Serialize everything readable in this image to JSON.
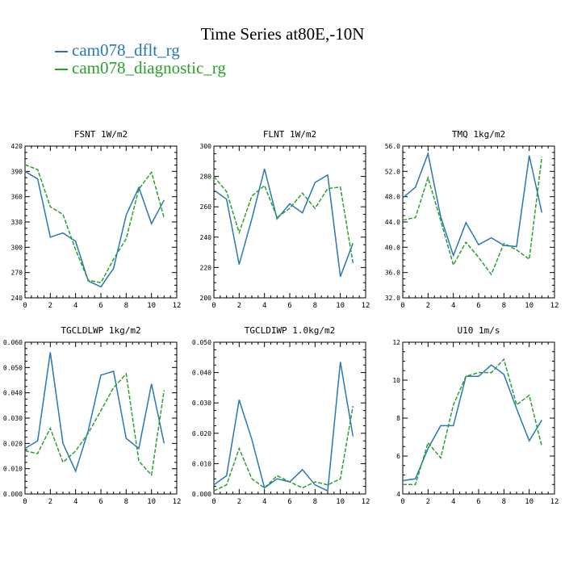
{
  "figure": {
    "title": "Time Series at80E,-10N",
    "legend": [
      {
        "label": "cam078_dflt_rg",
        "color": "#2878b4",
        "dash": "solid"
      },
      {
        "label": "cam078_diagnostic_rg",
        "color": "#2ca02c",
        "dash": "dashed"
      }
    ]
  },
  "chart_data": [
    {
      "type": "line",
      "title": "FSNT",
      "units": "1W/m2",
      "x": [
        0,
        1,
        2,
        3,
        4,
        5,
        6,
        7,
        8,
        9,
        10,
        11
      ],
      "xlim": [
        0,
        12
      ],
      "xticks": [
        0,
        2,
        4,
        6,
        8,
        10,
        12
      ],
      "ylim": [
        240,
        420
      ],
      "yticks": [
        "240",
        "270",
        "300",
        "330",
        "360",
        "390",
        "420"
      ],
      "series": [
        {
          "name": "cam078_dflt_rg",
          "values": [
            390,
            381,
            312,
            317,
            307,
            260,
            253,
            275,
            338,
            371,
            328,
            356
          ]
        },
        {
          "name": "cam078_diagnostic_rg",
          "values": [
            398,
            392,
            348,
            339,
            297,
            261,
            258,
            286,
            310,
            369,
            389,
            335
          ]
        }
      ]
    },
    {
      "type": "line",
      "title": "FLNT",
      "units": "1W/m2",
      "x": [
        0,
        1,
        2,
        3,
        4,
        5,
        6,
        7,
        8,
        9,
        10,
        11
      ],
      "xlim": [
        0,
        12
      ],
      "xticks": [
        0,
        2,
        4,
        6,
        8,
        10,
        12
      ],
      "ylim": [
        200,
        300
      ],
      "yticks": [
        "200",
        "220",
        "240",
        "260",
        "280",
        "300"
      ],
      "series": [
        {
          "name": "cam078_dflt_rg",
          "values": [
            271,
            265,
            222,
            252,
            285,
            252,
            262,
            256,
            276,
            281,
            214,
            236
          ]
        },
        {
          "name": "cam078_diagnostic_rg",
          "values": [
            280,
            270,
            243,
            267,
            274,
            253,
            259,
            269,
            259,
            272,
            273,
            223
          ]
        }
      ]
    },
    {
      "type": "line",
      "title": "TMQ",
      "units": "1kg/m2",
      "x": [
        0,
        1,
        2,
        3,
        4,
        5,
        6,
        7,
        8,
        9,
        10,
        11
      ],
      "xlim": [
        0,
        12
      ],
      "xticks": [
        0,
        2,
        4,
        6,
        8,
        10,
        12
      ],
      "ylim": [
        32,
        56
      ],
      "yticks": [
        "32.0",
        "36.0",
        "40.0",
        "44.0",
        "48.0",
        "52.0",
        "56.0"
      ],
      "series": [
        {
          "name": "cam078_dflt_rg",
          "values": [
            47.8,
            49.5,
            54.8,
            44.8,
            38.7,
            43.9,
            40.4,
            41.5,
            40.3,
            40.1,
            54.5,
            45.5
          ]
        },
        {
          "name": "cam078_diagnostic_rg",
          "values": [
            44.3,
            44.7,
            51.0,
            44.2,
            37.2,
            40.8,
            38.4,
            35.7,
            40.6,
            39.6,
            38.1,
            54.3
          ]
        }
      ]
    },
    {
      "type": "line",
      "title": "TGCLDLWP",
      "units": "1kg/m2",
      "x": [
        0,
        1,
        2,
        3,
        4,
        5,
        6,
        7,
        8,
        9,
        10,
        11
      ],
      "xlim": [
        0,
        12
      ],
      "xticks": [
        0,
        2,
        4,
        6,
        8,
        10,
        12
      ],
      "ylim": [
        0,
        0.06
      ],
      "yticks": [
        "0.000",
        "0.010",
        "0.020",
        "0.030",
        "0.040",
        "0.050",
        "0.060"
      ],
      "series": [
        {
          "name": "cam078_dflt_rg",
          "values": [
            0.018,
            0.021,
            0.056,
            0.02,
            0.009,
            0.025,
            0.047,
            0.0485,
            0.022,
            0.018,
            0.0435,
            0.02
          ]
        },
        {
          "name": "cam078_diagnostic_rg",
          "values": [
            0.017,
            0.016,
            0.026,
            0.0125,
            0.017,
            0.024,
            0.033,
            0.042,
            0.0475,
            0.013,
            0.0075,
            0.041
          ]
        }
      ]
    },
    {
      "type": "line",
      "title": "TGCLDIWP",
      "units": "1.0kg/m2",
      "x": [
        0,
        1,
        2,
        3,
        4,
        5,
        6,
        7,
        8,
        9,
        10,
        11
      ],
      "xlim": [
        0,
        12
      ],
      "xticks": [
        0,
        2,
        4,
        6,
        8,
        10,
        12
      ],
      "ylim": [
        0,
        0.05
      ],
      "yticks": [
        "0.000",
        "0.010",
        "0.020",
        "0.030",
        "0.040",
        "0.050"
      ],
      "series": [
        {
          "name": "cam078_dflt_rg",
          "values": [
            0.003,
            0.006,
            0.031,
            0.018,
            0.002,
            0.005,
            0.004,
            0.008,
            0.003,
            0.001,
            0.0435,
            0.019
          ]
        },
        {
          "name": "cam078_diagnostic_rg",
          "values": [
            0.001,
            0.003,
            0.015,
            0.005,
            0.002,
            0.006,
            0.004,
            0.002,
            0.004,
            0.003,
            0.005,
            0.029
          ]
        }
      ]
    },
    {
      "type": "line",
      "title": "U10",
      "units": "1m/s",
      "x": [
        0,
        1,
        2,
        3,
        4,
        5,
        6,
        7,
        8,
        9,
        10,
        11
      ],
      "xlim": [
        0,
        12
      ],
      "xticks": [
        0,
        2,
        4,
        6,
        8,
        10,
        12
      ],
      "ylim": [
        4,
        12
      ],
      "yticks": [
        "4",
        "6",
        "8",
        "10",
        "12"
      ],
      "series": [
        {
          "name": "cam078_dflt_rg",
          "values": [
            4.7,
            4.8,
            6.4,
            7.6,
            7.6,
            10.2,
            10.2,
            10.8,
            10.3,
            8.5,
            6.8,
            7.9
          ]
        },
        {
          "name": "cam078_diagnostic_rg",
          "values": [
            4.5,
            4.5,
            6.7,
            5.9,
            8.7,
            10.2,
            10.4,
            10.4,
            11.1,
            8.7,
            9.2,
            6.5
          ]
        }
      ]
    }
  ]
}
